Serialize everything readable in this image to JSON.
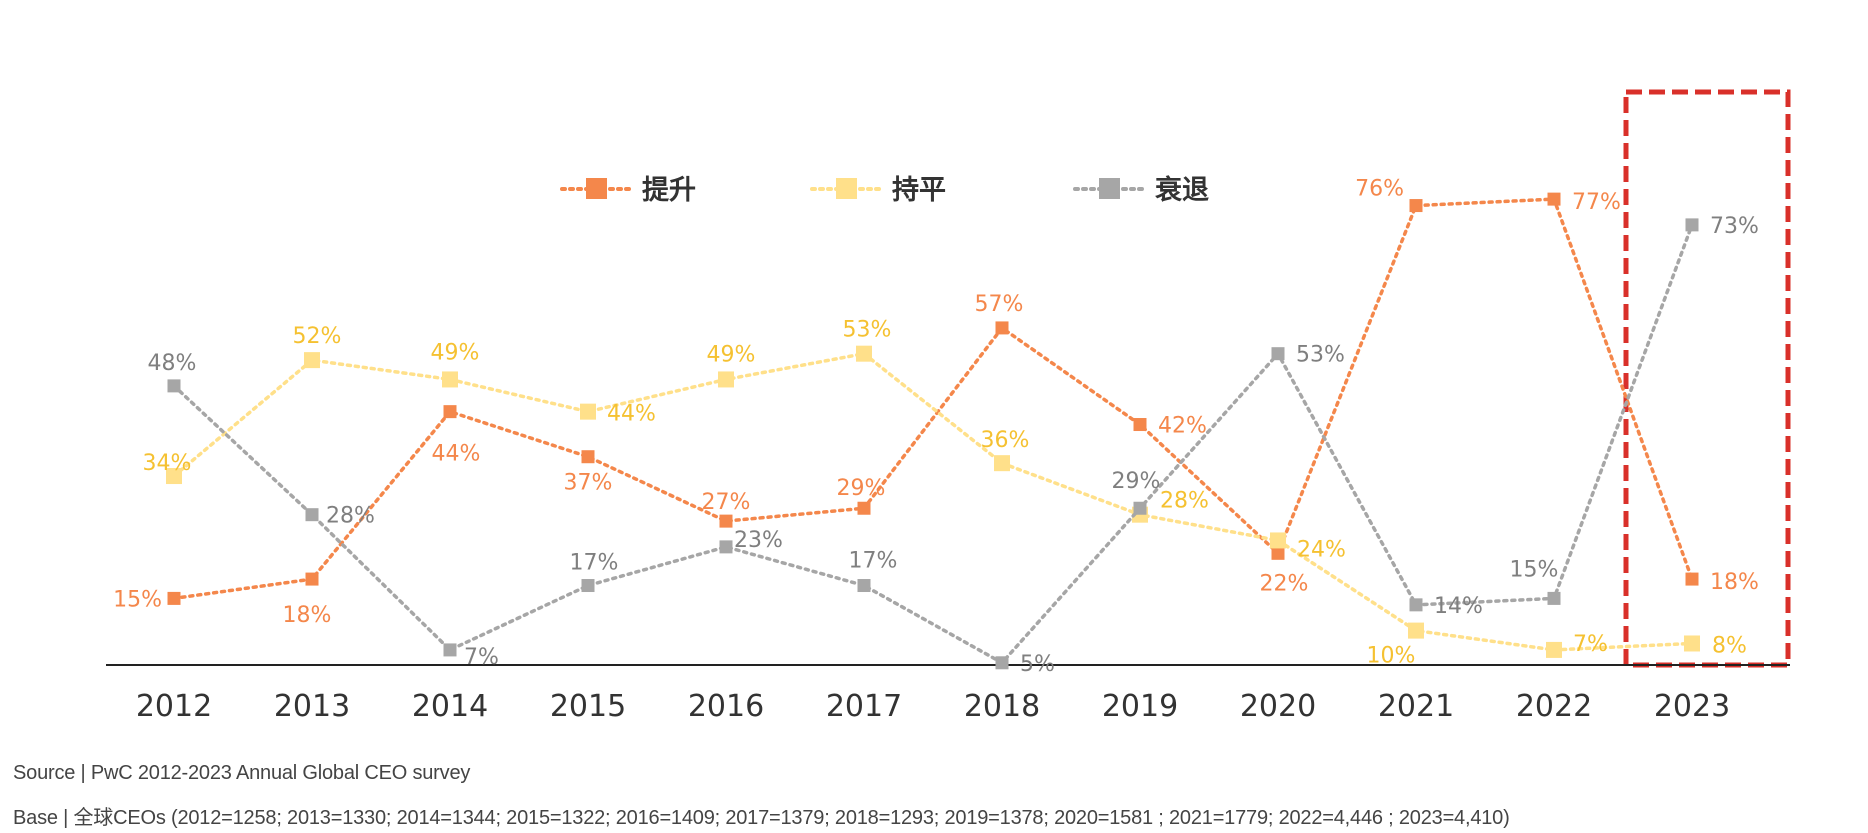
{
  "chart_data": {
    "type": "line",
    "title": "",
    "xlabel": "",
    "ylabel": "",
    "ylim": [
      0,
      100
    ],
    "categories": [
      "2012",
      "2013",
      "2014",
      "2015",
      "2016",
      "2017",
      "2018",
      "2019",
      "2020",
      "2021",
      "2022",
      "2023"
    ],
    "legend_position": "top-center",
    "grid": false,
    "series": [
      {
        "name": "提升",
        "color": "#F4874B",
        "marker_color": "#F4874B",
        "values": [
          15,
          18,
          44,
          37,
          27,
          29,
          57,
          42,
          22,
          76,
          77,
          18
        ],
        "labels": [
          "15%",
          "18%",
          "44%",
          "37%",
          "27%",
          "29%",
          "57%",
          "42%",
          "22%",
          "76%",
          "77%",
          "18%"
        ]
      },
      {
        "name": "持平",
        "color": "#FFE08A",
        "marker_color": "#FFE08A",
        "label_color": "#F5C131",
        "values": [
          34,
          52,
          49,
          44,
          49,
          53,
          36,
          28,
          24,
          10,
          7,
          8
        ],
        "labels": [
          "34%",
          "52%",
          "49%",
          "44%",
          "49%",
          "53%",
          "36%",
          "28%",
          "24%",
          "10%",
          "7%",
          "8%"
        ]
      },
      {
        "name": "衰退",
        "color": "#A6A6A6",
        "marker_color": "#A6A6A6",
        "label_color": "#7F7F7F",
        "values": [
          48,
          28,
          7,
          17,
          23,
          17,
          5,
          29,
          53,
          14,
          15,
          73
        ],
        "labels": [
          "48%",
          "28%",
          "7%",
          "17%",
          "23%",
          "17%",
          "5%",
          "29%",
          "53%",
          "14%",
          "15%",
          "73%"
        ]
      }
    ],
    "highlight": {
      "category": "2023",
      "color": "#D9302A",
      "style": "dashed-box"
    }
  },
  "footnotes": {
    "source": "Source | PwC 2012-2023 Annual Global CEO survey",
    "base": "Base | 全球CEOs (2012=1258; 2013=1330; 2014=1344; 2015=1322; 2016=1409; 2017=1379; 2018=1293; 2019=1378; 2020=1581 ;  2021=1779; 2022=4,446 ; 2023=4,410)"
  }
}
